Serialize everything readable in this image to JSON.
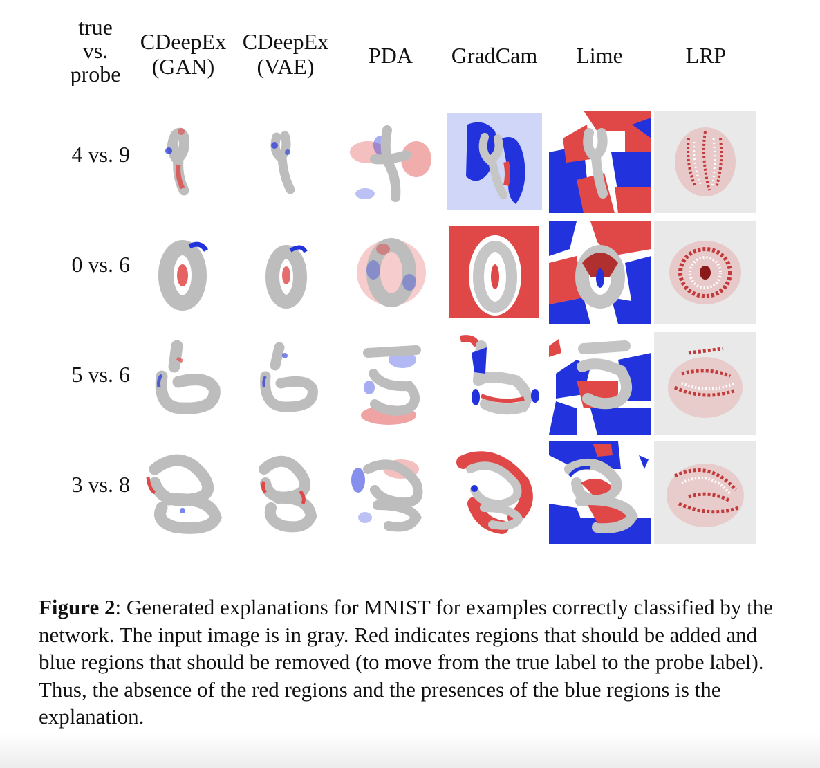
{
  "header": {
    "corner_line1": "true",
    "corner_line2": "vs.",
    "corner_line3": "probe",
    "columns": [
      {
        "line1": "CDeepEx",
        "line2": "(GAN)"
      },
      {
        "line1": "CDeepEx",
        "line2": "(VAE)"
      },
      {
        "line1": "PDA"
      },
      {
        "line1": "GradCam"
      },
      {
        "line1": "Lime"
      },
      {
        "line1": "LRP"
      }
    ]
  },
  "rows": [
    {
      "label": "4 vs. 9"
    },
    {
      "label": "0 vs. 6"
    },
    {
      "label": "5 vs. 6"
    },
    {
      "label": "3 vs. 8"
    }
  ],
  "caption": {
    "label": "Figure 2",
    "text": ": Generated explanations for MNIST for examples correctly classified by the network. The input image is in gray. Red indicates regions that should be added and blue regions that should be removed (to move from the true label to the probe label). Thus, the absence of the red regions and the presences of the blue regions is the explanation."
  },
  "colors": {
    "digit_gray": "#bdbdbd",
    "add_red": "#e04848",
    "remove_blue": "#2233dd",
    "light_blue": "#cfd6f8",
    "lrp_bg": "#e9e9e9"
  }
}
